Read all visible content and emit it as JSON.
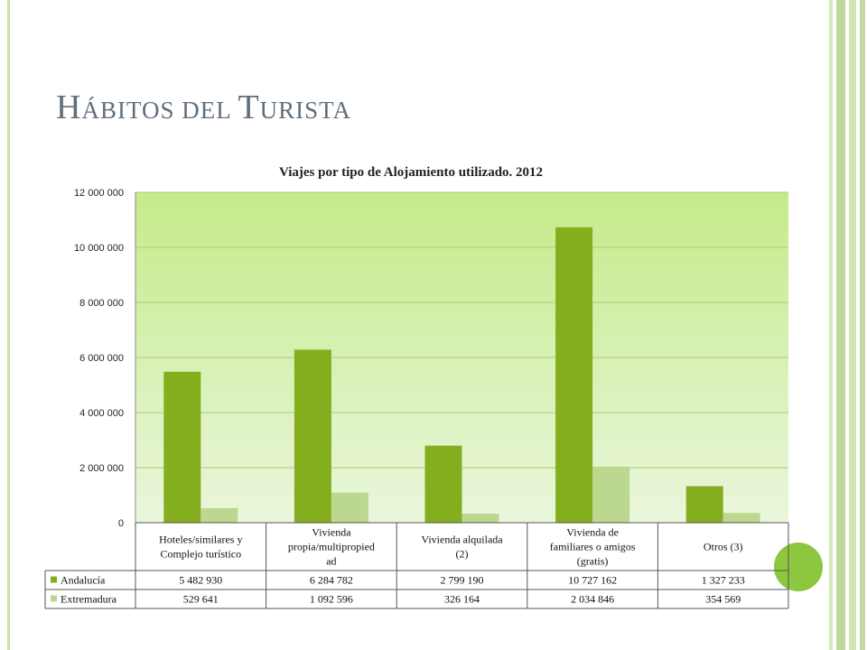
{
  "slide": {
    "title_parts": [
      {
        "text": "H",
        "style": "big"
      },
      {
        "text": "ÁBITOS DEL ",
        "style": "sc"
      },
      {
        "text": "T",
        "style": "big"
      },
      {
        "text": "URISTA",
        "style": "sc"
      }
    ],
    "colors": {
      "title": "#5f6f7d",
      "accent": "#8dc63f",
      "stripes": "#c8e0a6"
    }
  },
  "chart_data": {
    "type": "bar",
    "title": "Viajes por tipo de Alojamiento utilizado. 2012",
    "categories": [
      [
        "Hoteles/similares y",
        "Complejo turístico"
      ],
      [
        "Vivienda",
        "propia/multipropied",
        "ad"
      ],
      [
        "Vivienda alquilada",
        "(2)"
      ],
      [
        "Vivienda de",
        "familiares o amigos",
        "(gratis)"
      ],
      [
        "Otros (3)"
      ]
    ],
    "series": [
      {
        "name": "Andalucía",
        "values": [
          5482930,
          6284782,
          2799190,
          10727162,
          1327233
        ],
        "labels": [
          "5 482 930",
          "6 284 782",
          "2 799 190",
          "10 727 162",
          "1 327 233"
        ],
        "color": "#84ae1e"
      },
      {
        "name": "Extremadura",
        "values": [
          529641,
          1092596,
          326164,
          2034846,
          354569
        ],
        "labels": [
          "529 641",
          "1 092 596",
          "326 164",
          "2 034 846",
          "354 569"
        ],
        "color": "#bcd88f"
      }
    ],
    "ylim": [
      0,
      12000000
    ],
    "yticks": [
      0,
      2000000,
      4000000,
      6000000,
      8000000,
      10000000,
      12000000
    ],
    "ytick_labels": [
      "0",
      "2 000 000",
      "4 000 000",
      "6 000 000",
      "8 000 000",
      "10 000 000",
      "12 000 000"
    ],
    "grid": true,
    "plot_background": [
      "#c5eb8a",
      "#eaf6dc"
    ],
    "legend": "data table"
  }
}
